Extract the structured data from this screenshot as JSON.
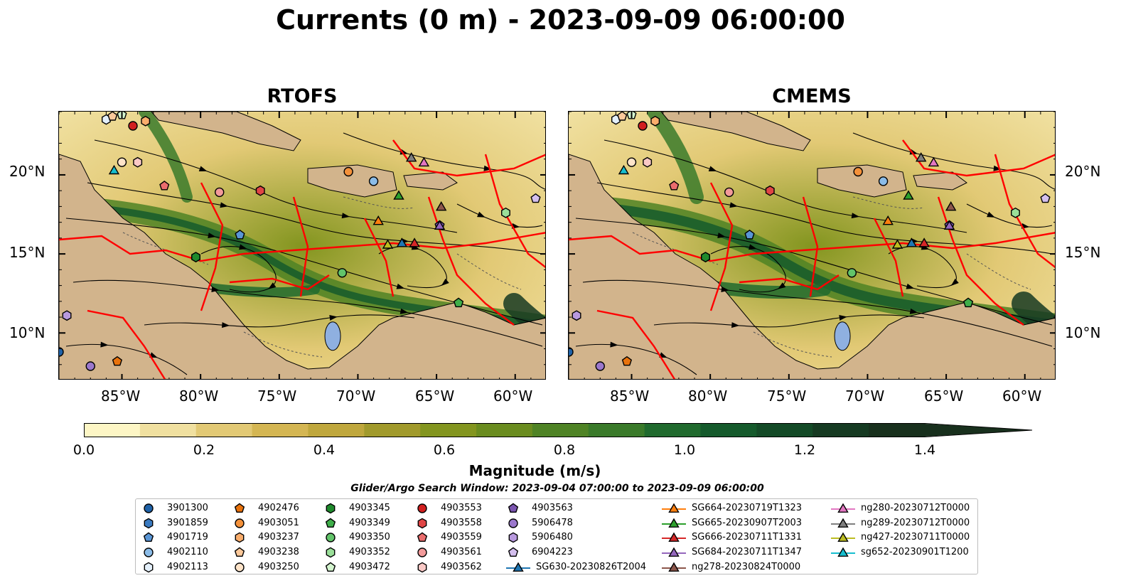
{
  "figure": {
    "title": "Currents (0 m) - 2023-09-09 06:00:00"
  },
  "panels": [
    {
      "title": "RTOFS"
    },
    {
      "title": "CMEMS"
    }
  ],
  "axes": {
    "x_ticks": [
      "85°W",
      "80°W",
      "75°W",
      "70°W",
      "65°W",
      "60°W"
    ],
    "y_ticks": [
      "20°N",
      "15°N",
      "10°N"
    ]
  },
  "colorbar": {
    "label": "Magnitude (m/s)",
    "ticks": [
      "0.0",
      "0.2",
      "0.4",
      "0.6",
      "0.8",
      "1.0",
      "1.2",
      "1.4"
    ],
    "levels": [
      0,
      0.1,
      0.2,
      0.3,
      0.4,
      0.5,
      0.6,
      0.7,
      0.8,
      0.9,
      1.0,
      1.1,
      1.2,
      1.3,
      1.4,
      1.5
    ],
    "colors": [
      "#fdf6c5",
      "#f0e0a0",
      "#e2c975",
      "#d4b653",
      "#bfa73d",
      "#a19a2c",
      "#83951f",
      "#6a8c1f",
      "#4f8325",
      "#3a7a2a",
      "#206a2e",
      "#155a2c",
      "#144a27",
      "#163a22",
      "#18301d"
    ],
    "extend": "max"
  },
  "search_window": "Glider/Argo Search Window: 2023-09-04 07:00:00 to 2023-09-09 06:00:00",
  "legend": {
    "items": [
      {
        "label": "3901300",
        "marker": "circle",
        "color": "#1f62a8"
      },
      {
        "label": "3901859",
        "marker": "hexagon",
        "color": "#3a7ac0"
      },
      {
        "label": "4901719",
        "marker": "pentagon",
        "color": "#5a96d6"
      },
      {
        "label": "4902110",
        "marker": "circle",
        "color": "#8bbce8"
      },
      {
        "label": "4902113",
        "marker": "hexagon",
        "color": "#e4f0fb"
      },
      {
        "label": "4902476",
        "marker": "pentagon",
        "color": "#e8720c"
      },
      {
        "label": "4903051",
        "marker": "circle",
        "color": "#f4913a"
      },
      {
        "label": "4903237",
        "marker": "hexagon",
        "color": "#f9ad6c"
      },
      {
        "label": "4903238",
        "marker": "pentagon",
        "color": "#fcc99a"
      },
      {
        "label": "4903250",
        "marker": "circle",
        "color": "#fee4c9"
      },
      {
        "label": "4903345",
        "marker": "hexagon",
        "color": "#1f8a2c"
      },
      {
        "label": "4903349",
        "marker": "pentagon",
        "color": "#3fae4a"
      },
      {
        "label": "4903350",
        "marker": "circle",
        "color": "#62c46a"
      },
      {
        "label": "4903352",
        "marker": "hexagon",
        "color": "#9adf99"
      },
      {
        "label": "4903472",
        "marker": "pentagon",
        "color": "#d4f5cf"
      },
      {
        "label": "4903553",
        "marker": "circle",
        "color": "#d11f1f"
      },
      {
        "label": "4903558",
        "marker": "hexagon",
        "color": "#e04545"
      },
      {
        "label": "4903559",
        "marker": "pentagon",
        "color": "#ea6d6d"
      },
      {
        "label": "4903561",
        "marker": "circle",
        "color": "#f29a9a"
      },
      {
        "label": "4903562",
        "marker": "hexagon",
        "color": "#fac9c6"
      },
      {
        "label": "4903563",
        "marker": "pentagon",
        "color": "#7b55b0"
      },
      {
        "label": "5906478",
        "marker": "circle",
        "color": "#9b77cc"
      },
      {
        "label": "5906480",
        "marker": "hexagon",
        "color": "#b899de"
      },
      {
        "label": "6904223",
        "marker": "pentagon",
        "color": "#d4bfee"
      },
      {
        "label": "SG630-20230826T2004",
        "marker": "triangle-line",
        "color": "#1f77b4"
      },
      {
        "label": "SG664-20230719T1323",
        "marker": "triangle-line",
        "color": "#ff7f0e"
      },
      {
        "label": "SG665-20230907T2003",
        "marker": "triangle-line",
        "color": "#2ca02c"
      },
      {
        "label": "SG666-20230711T1331",
        "marker": "triangle-line",
        "color": "#d62728"
      },
      {
        "label": "SG684-20230711T1347",
        "marker": "triangle-line",
        "color": "#9467bd"
      },
      {
        "label": "ng278-20230824T0000",
        "marker": "triangle-line",
        "color": "#8c564b"
      },
      {
        "label": "ng280-20230712T0000",
        "marker": "triangle-line",
        "color": "#e377c2"
      },
      {
        "label": "ng289-20230712T0000",
        "marker": "triangle-line",
        "color": "#7f7f7f"
      },
      {
        "label": "ng427-20230711T0000",
        "marker": "triangle-line",
        "color": "#bcbd22"
      },
      {
        "label": "sg652-20230901T1200",
        "marker": "triangle-line",
        "color": "#17becf"
      }
    ]
  },
  "chart_data": {
    "type": "heatmap",
    "variable": "Magnitude (m/s)",
    "depth": "0 m",
    "time": "2023-09-09 06:00:00",
    "xlim": [
      -89,
      -58
    ],
    "ylim": [
      7,
      24
    ],
    "x_ticks": [
      -85,
      -80,
      -75,
      -70,
      -65,
      -60
    ],
    "y_ticks": [
      10,
      15,
      20
    ],
    "vmin": 0,
    "vmax": 1.5,
    "overlays": [
      "streamlines",
      "EEZ boundaries",
      "bathymetry contours",
      "argo floats",
      "glider tracks"
    ],
    "markers": [
      {
        "label": "3901300",
        "lon": -89.0,
        "lat": 8.8
      },
      {
        "label": "3901859",
        "lon": -80.3,
        "lat": 14.8
      },
      {
        "label": "4901719",
        "lon": -77.5,
        "lat": 16.2
      },
      {
        "label": "4902110",
        "lon": -69.0,
        "lat": 19.6
      },
      {
        "label": "4902113",
        "lon": -86.0,
        "lat": 23.5
      },
      {
        "label": "4902476",
        "lon": -85.3,
        "lat": 8.2
      },
      {
        "label": "4903051",
        "lon": -70.6,
        "lat": 20.2
      },
      {
        "label": "4903237",
        "lon": -83.5,
        "lat": 23.4
      },
      {
        "label": "4903238",
        "lon": -85.6,
        "lat": 23.7
      },
      {
        "label": "4903250",
        "lon": -85.0,
        "lat": 20.8
      },
      {
        "label": "4903345",
        "lon": -80.3,
        "lat": 14.8
      },
      {
        "label": "4903349",
        "lon": -63.6,
        "lat": 11.9
      },
      {
        "label": "4903350",
        "lon": -71.0,
        "lat": 13.8
      },
      {
        "label": "4903352",
        "lon": -60.6,
        "lat": 17.6
      },
      {
        "label": "4903472",
        "lon": -85.0,
        "lat": 23.8
      },
      {
        "label": "4903553",
        "lon": -84.3,
        "lat": 23.1
      },
      {
        "label": "4903558",
        "lon": -76.2,
        "lat": 19.0
      },
      {
        "label": "4903559",
        "lon": -82.3,
        "lat": 19.3
      },
      {
        "label": "4903561",
        "lon": -78.8,
        "lat": 18.9
      },
      {
        "label": "4903562",
        "lon": -84.0,
        "lat": 20.8
      },
      {
        "label": "4903563",
        "lon": -64.8,
        "lat": 16.8
      },
      {
        "label": "5906478",
        "lon": -87.0,
        "lat": 7.9
      },
      {
        "label": "5906480",
        "lon": -88.5,
        "lat": 11.1
      },
      {
        "label": "6904223",
        "lon": -58.7,
        "lat": 18.5
      },
      {
        "label": "SG630-20230826T2004",
        "lon": -67.2,
        "lat": 15.7
      },
      {
        "label": "SG664-20230719T1323",
        "lon": -68.7,
        "lat": 17.1
      },
      {
        "label": "SG665-20230907T2003",
        "lon": -67.4,
        "lat": 18.7
      },
      {
        "label": "SG666-20230711T1331",
        "lon": -66.4,
        "lat": 15.7
      },
      {
        "label": "SG684-20230711T1347",
        "lon": -64.8,
        "lat": 16.8
      },
      {
        "label": "ng278-20230824T0000",
        "lon": -64.7,
        "lat": 18.0
      },
      {
        "label": "ng280-20230712T0000",
        "lon": -65.8,
        "lat": 20.8
      },
      {
        "label": "ng289-20230712T0000",
        "lon": -66.6,
        "lat": 21.1
      },
      {
        "label": "ng427-20230711T0000",
        "lon": -68.1,
        "lat": 15.6
      },
      {
        "label": "sg652-20230901T1200",
        "lon": -85.5,
        "lat": 20.3
      }
    ]
  }
}
